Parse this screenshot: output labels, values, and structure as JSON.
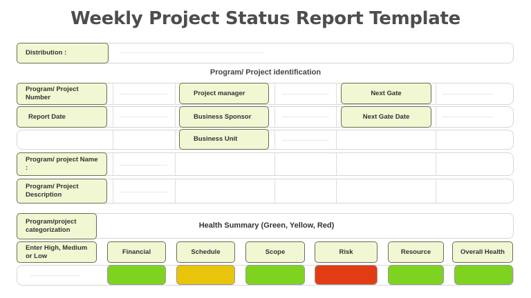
{
  "page": {
    "title": "Weekly Project Status Report Template"
  },
  "distribution": {
    "label": "Distribution :"
  },
  "identification": {
    "section_title": "Program/ Project identification",
    "program_number": "Program/ Project Number",
    "report_date": "Report Date",
    "project_manager": "Project manager",
    "business_sponsor": "Business Sponsor",
    "business_unit": "Business Unit",
    "next_gate": "Next Gate",
    "next_gate_date": "Next Gate Date",
    "program_name": "Program/ project Name :",
    "program_description": "Program/ Project Description"
  },
  "health": {
    "categorization": "Program/project categorization",
    "summary_title": "Health Summary (Green, Yellow, Red)",
    "level_prompt": "Enter High, Medium or Low",
    "categories": [
      {
        "label": "Financial",
        "status": "Green",
        "color": "#7ed321"
      },
      {
        "label": "Schedule",
        "status": "Yellow",
        "color": "#e8c40a"
      },
      {
        "label": "Scope",
        "status": "Green",
        "color": "#7ed321"
      },
      {
        "label": "Risk",
        "status": "Red",
        "color": "#e23c15"
      },
      {
        "label": "Resource",
        "status": "Green",
        "color": "#7ed321"
      },
      {
        "label": "Overall Health",
        "status": "Green",
        "color": "#7ed321"
      }
    ]
  }
}
